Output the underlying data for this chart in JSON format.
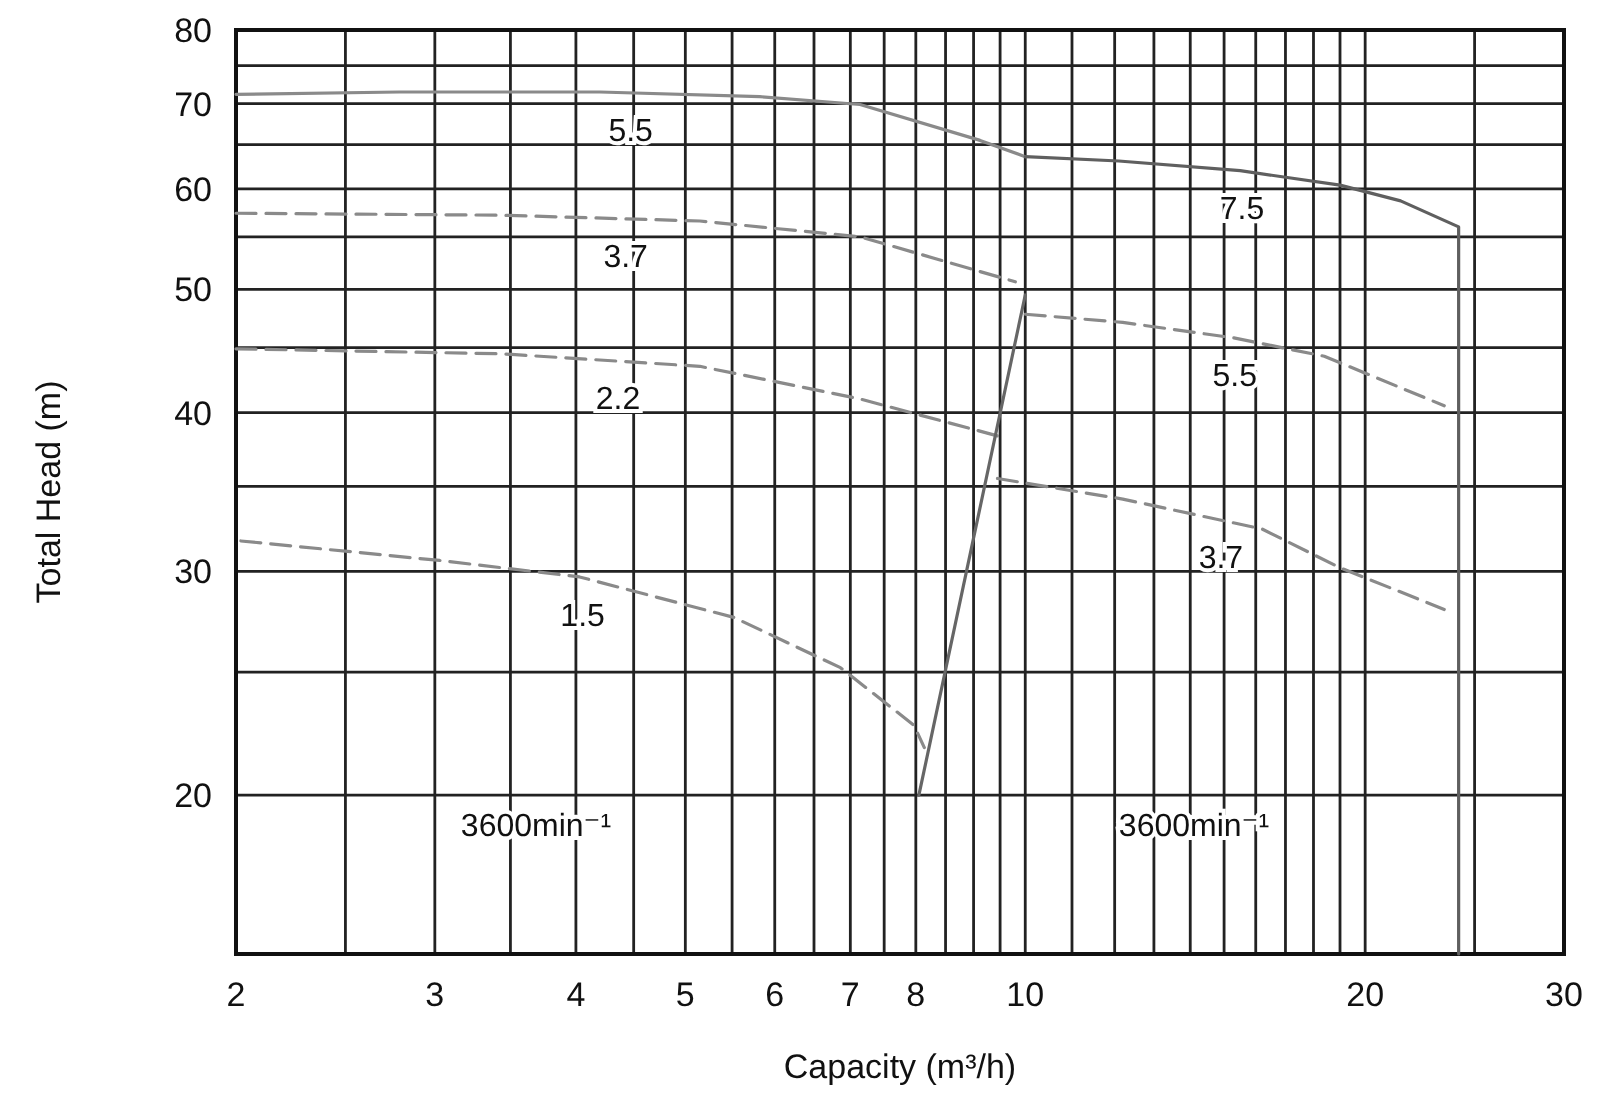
{
  "chart_data": {
    "type": "line",
    "xlabel": "Capacity (m³/h)",
    "ylabel": "Total Head (m)",
    "log": "xy",
    "grid": true,
    "xlim": [
      2,
      30
    ],
    "ylim": [
      15,
      80
    ],
    "xticks": [
      2,
      {
        "value": 2.5,
        "label": null
      },
      3,
      {
        "value": 3.5,
        "label": null
      },
      4,
      {
        "value": 4.5,
        "label": null
      },
      5,
      {
        "value": 5.5,
        "label": null
      },
      6,
      {
        "value": 6.5,
        "label": null
      },
      7,
      {
        "value": 7.5,
        "label": null
      },
      8,
      {
        "value": 8.5,
        "label": null
      },
      {
        "value": 9,
        "label": null
      },
      {
        "value": 9.5,
        "label": null
      },
      10,
      {
        "value": 11,
        "label": null
      },
      {
        "value": 12,
        "label": null
      },
      {
        "value": 13,
        "label": null
      },
      {
        "value": 14,
        "label": null
      },
      {
        "value": 15,
        "label": null
      },
      {
        "value": 16,
        "label": null
      },
      {
        "value": 17,
        "label": null
      },
      {
        "value": 18,
        "label": null
      },
      {
        "value": 19,
        "label": null
      },
      20,
      {
        "value": 25,
        "label": null
      },
      30
    ],
    "yticks": [
      20,
      {
        "value": 25,
        "label": null
      },
      30,
      {
        "value": 35,
        "label": null
      },
      40,
      {
        "value": 45,
        "label": null
      },
      50,
      {
        "value": 55,
        "label": null
      },
      60,
      {
        "value": 65,
        "label": null
      },
      70,
      {
        "value": 75,
        "label": null
      },
      80
    ],
    "series": [
      {
        "name": "5.5",
        "color": "#8a8a8a",
        "line_style": "solid",
        "x": [
          2,
          2.79,
          4.2,
          5.82,
          7.14,
          9.12,
          10
        ],
        "values": [
          71.2,
          71.5,
          71.5,
          70.9,
          69.9,
          65.5,
          63.6
        ]
      },
      {
        "name": "3.7",
        "color": "#8a8a8a",
        "line_style": "dashed",
        "x": [
          2,
          3.43,
          5.15,
          7.14,
          9.8
        ],
        "values": [
          57.4,
          57.2,
          56.6,
          55.0,
          50.7
        ]
      },
      {
        "name": "2.2",
        "color": "#8a8a8a",
        "line_style": "dashed",
        "x": [
          2,
          3.43,
          5.15,
          7.14,
          9.5
        ],
        "values": [
          44.9,
          44.5,
          43.5,
          41.0,
          38.3
        ]
      },
      {
        "name": "1.5",
        "color": "#8a8a8a",
        "line_style": "dashed",
        "x": [
          2.02,
          3.03,
          4.03,
          5.52,
          6.86,
          7.97,
          8.14
        ],
        "values": [
          31.7,
          30.6,
          29.7,
          27.6,
          25.2,
          22.7,
          21.8
        ]
      },
      {
        "color": "#666666",
        "line_style": "solid",
        "x": [
          8.05,
          10
        ],
        "values": [
          20.0,
          49.5
        ]
      },
      {
        "name": "7.5",
        "color": "#5f5f5f",
        "line_style": "solid",
        "x": [
          10,
          12.1,
          15.5,
          19.0,
          21.5,
          24.2,
          24.2
        ],
        "values": [
          63.6,
          63.1,
          62.0,
          60.4,
          58.7,
          56.0,
          15
        ]
      },
      {
        "name": "5.5",
        "color": "#8a8a8a",
        "line_style": "dashed",
        "x": [
          10,
          12.2,
          15.3,
          18.4,
          23.5
        ],
        "values": [
          47.8,
          47.1,
          45.8,
          44.3,
          40.5
        ]
      },
      {
        "name": "3.7",
        "color": "#8a8a8a",
        "line_style": "dashed",
        "x": [
          9.45,
          12.2,
          16.2,
          19.0,
          23.5
        ],
        "values": [
          35.5,
          34.2,
          32.4,
          30.2,
          28.0
        ]
      }
    ],
    "annotations": [
      "3600min⁻¹",
      "3600min⁻¹"
    ]
  }
}
